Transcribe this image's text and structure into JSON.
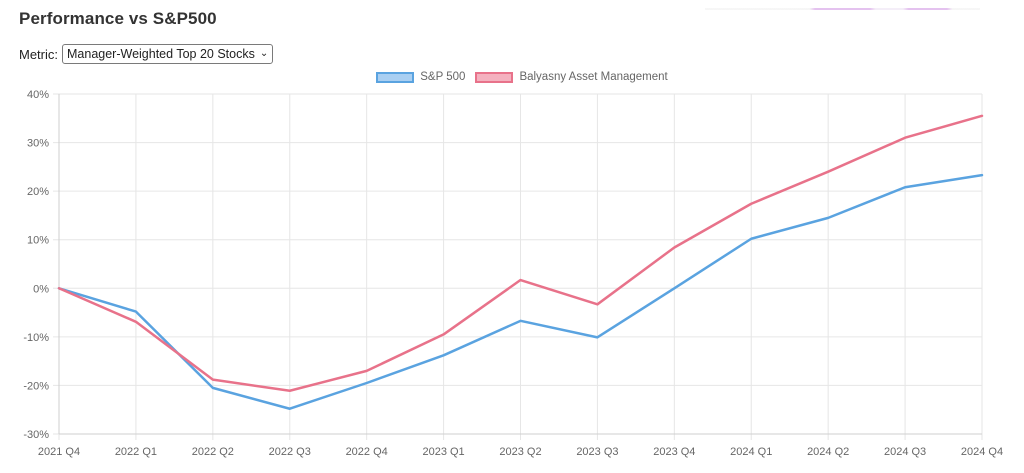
{
  "header": {
    "title": "Performance vs S&P500"
  },
  "metric": {
    "label": "Metric:",
    "selected": "Manager-Weighted Top 20 Stocks"
  },
  "colors": {
    "sp500_line": "#5aa3e0",
    "sp500_fill": "#a9cff2",
    "balyasny_line": "#e8728a",
    "balyasny_fill": "#f4b1bf",
    "grid": "#e6e6e6",
    "axis_text": "#666666"
  },
  "chart_data": {
    "type": "line",
    "title": "",
    "xlabel": "",
    "ylabel": "",
    "ylim": [
      -30,
      40
    ],
    "yticks": [
      -30,
      -20,
      -10,
      0,
      10,
      20,
      30,
      40
    ],
    "ytick_labels": [
      "-30%",
      "-20%",
      "-10%",
      "0%",
      "10%",
      "20%",
      "30%",
      "40%"
    ],
    "categories": [
      "2021 Q4",
      "2022 Q1",
      "2022 Q2",
      "2022 Q3",
      "2022 Q4",
      "2023 Q1",
      "2023 Q2",
      "2023 Q3",
      "2023 Q4",
      "2024 Q1",
      "2024 Q2",
      "2024 Q3",
      "2024 Q4"
    ],
    "legend_position": "top-center",
    "grid": true,
    "series": [
      {
        "name": "S&P 500",
        "color_key": "sp500",
        "values": [
          0,
          -4.8,
          -20.5,
          -24.8,
          -19.5,
          -13.8,
          -6.7,
          -10.1,
          0,
          10.2,
          14.5,
          20.8,
          23.3
        ]
      },
      {
        "name": "Balyasny Asset Management",
        "color_key": "balyasny",
        "values": [
          0,
          -6.9,
          -18.8,
          -21.1,
          -17.0,
          -9.5,
          1.7,
          -3.3,
          8.4,
          17.4,
          24.0,
          31.0,
          35.5
        ]
      }
    ]
  }
}
